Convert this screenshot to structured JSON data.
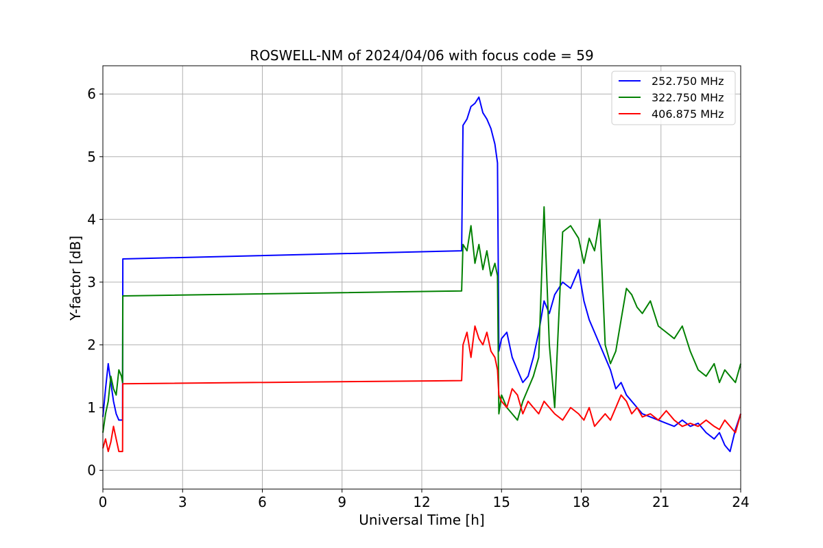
{
  "chart_data": {
    "type": "line",
    "title": "ROSWELL-NM of 2024/04/06 with focus code = 59",
    "xlabel": "Universal Time [h]",
    "ylabel": "Y-factor [dB]",
    "xlim": [
      0,
      24
    ],
    "ylim": [
      -0.3,
      6.45
    ],
    "xticks": [
      0,
      3,
      6,
      9,
      12,
      15,
      18,
      21,
      24
    ],
    "yticks": [
      0,
      1,
      2,
      3,
      4,
      5,
      6
    ],
    "grid": true,
    "legend_position": "top-right",
    "series": [
      {
        "name": "252.750 MHz",
        "color": "#0000ff",
        "x": [
          0,
          0.1,
          0.2,
          0.3,
          0.4,
          0.5,
          0.6,
          0.7,
          0.74,
          0.75,
          13.5,
          13.55,
          13.7,
          13.85,
          14.0,
          14.15,
          14.3,
          14.45,
          14.6,
          14.75,
          14.85,
          14.9,
          15.0,
          15.2,
          15.4,
          15.6,
          15.8,
          16.0,
          16.2,
          16.4,
          16.6,
          16.8,
          17.0,
          17.3,
          17.6,
          17.9,
          18.1,
          18.3,
          18.5,
          18.7,
          18.9,
          19.1,
          19.3,
          19.5,
          19.7,
          19.9,
          20.1,
          20.3,
          20.6,
          20.9,
          21.2,
          21.5,
          21.8,
          22.1,
          22.4,
          22.7,
          23.0,
          23.2,
          23.4,
          23.6,
          23.8,
          24.0
        ],
        "y": [
          0.85,
          1.3,
          1.7,
          1.4,
          1.1,
          0.9,
          0.8,
          0.8,
          0.8,
          3.37,
          3.5,
          5.5,
          5.6,
          5.8,
          5.85,
          5.95,
          5.7,
          5.6,
          5.45,
          5.2,
          4.9,
          1.9,
          2.1,
          2.2,
          1.8,
          1.6,
          1.4,
          1.5,
          1.8,
          2.2,
          2.7,
          2.5,
          2.8,
          3.0,
          2.9,
          3.2,
          2.7,
          2.4,
          2.2,
          2.0,
          1.8,
          1.6,
          1.3,
          1.4,
          1.2,
          1.1,
          1.0,
          0.9,
          0.85,
          0.8,
          0.75,
          0.7,
          0.8,
          0.7,
          0.75,
          0.6,
          0.5,
          0.6,
          0.4,
          0.3,
          0.65,
          0.9
        ]
      },
      {
        "name": "322.750 MHz",
        "color": "#008000",
        "x": [
          0,
          0.1,
          0.2,
          0.3,
          0.4,
          0.5,
          0.6,
          0.7,
          0.74,
          0.75,
          13.5,
          13.55,
          13.7,
          13.85,
          14.0,
          14.15,
          14.3,
          14.45,
          14.6,
          14.75,
          14.85,
          14.9,
          15.0,
          15.2,
          15.4,
          15.6,
          15.8,
          16.0,
          16.2,
          16.4,
          16.6,
          16.8,
          17.0,
          17.3,
          17.6,
          17.9,
          18.1,
          18.3,
          18.5,
          18.7,
          18.9,
          19.1,
          19.3,
          19.5,
          19.7,
          19.9,
          20.1,
          20.3,
          20.6,
          20.9,
          21.2,
          21.5,
          21.8,
          22.1,
          22.4,
          22.7,
          23.0,
          23.2,
          23.4,
          23.6,
          23.8,
          24.0
        ],
        "y": [
          0.6,
          0.9,
          1.1,
          1.5,
          1.3,
          1.2,
          1.6,
          1.5,
          1.4,
          2.78,
          2.86,
          3.6,
          3.5,
          3.9,
          3.3,
          3.6,
          3.2,
          3.5,
          3.1,
          3.3,
          3.1,
          0.9,
          1.2,
          1.0,
          0.9,
          0.8,
          1.1,
          1.3,
          1.5,
          1.8,
          4.2,
          2.0,
          1.0,
          3.8,
          3.9,
          3.7,
          3.3,
          3.7,
          3.5,
          4.0,
          2.0,
          1.7,
          1.9,
          2.4,
          2.9,
          2.8,
          2.6,
          2.5,
          2.7,
          2.3,
          2.2,
          2.1,
          2.3,
          1.9,
          1.6,
          1.5,
          1.7,
          1.4,
          1.6,
          1.5,
          1.4,
          1.7
        ]
      },
      {
        "name": "406.875 MHz",
        "color": "#ff0000",
        "x": [
          0,
          0.1,
          0.2,
          0.3,
          0.4,
          0.5,
          0.6,
          0.7,
          0.74,
          0.75,
          13.5,
          13.55,
          13.7,
          13.85,
          14.0,
          14.15,
          14.3,
          14.45,
          14.6,
          14.75,
          14.85,
          14.9,
          15.0,
          15.2,
          15.4,
          15.6,
          15.8,
          16.0,
          16.2,
          16.4,
          16.6,
          16.8,
          17.0,
          17.3,
          17.6,
          17.9,
          18.1,
          18.3,
          18.5,
          18.7,
          18.9,
          19.1,
          19.3,
          19.5,
          19.7,
          19.9,
          20.1,
          20.3,
          20.6,
          20.9,
          21.2,
          21.5,
          21.8,
          22.1,
          22.4,
          22.7,
          23.0,
          23.2,
          23.4,
          23.6,
          23.8,
          24.0
        ],
        "y": [
          0.35,
          0.5,
          0.3,
          0.45,
          0.7,
          0.5,
          0.3,
          0.3,
          0.3,
          1.38,
          1.43,
          2.0,
          2.2,
          1.8,
          2.3,
          2.1,
          2.0,
          2.2,
          1.9,
          1.8,
          1.6,
          1.2,
          1.1,
          1.0,
          1.3,
          1.2,
          0.9,
          1.1,
          1.0,
          0.9,
          1.1,
          1.0,
          0.9,
          0.8,
          1.0,
          0.9,
          0.8,
          1.0,
          0.7,
          0.8,
          0.9,
          0.8,
          1.0,
          1.2,
          1.1,
          0.9,
          1.0,
          0.85,
          0.9,
          0.8,
          0.95,
          0.8,
          0.7,
          0.75,
          0.7,
          0.8,
          0.7,
          0.65,
          0.8,
          0.7,
          0.6,
          0.9
        ]
      }
    ]
  }
}
